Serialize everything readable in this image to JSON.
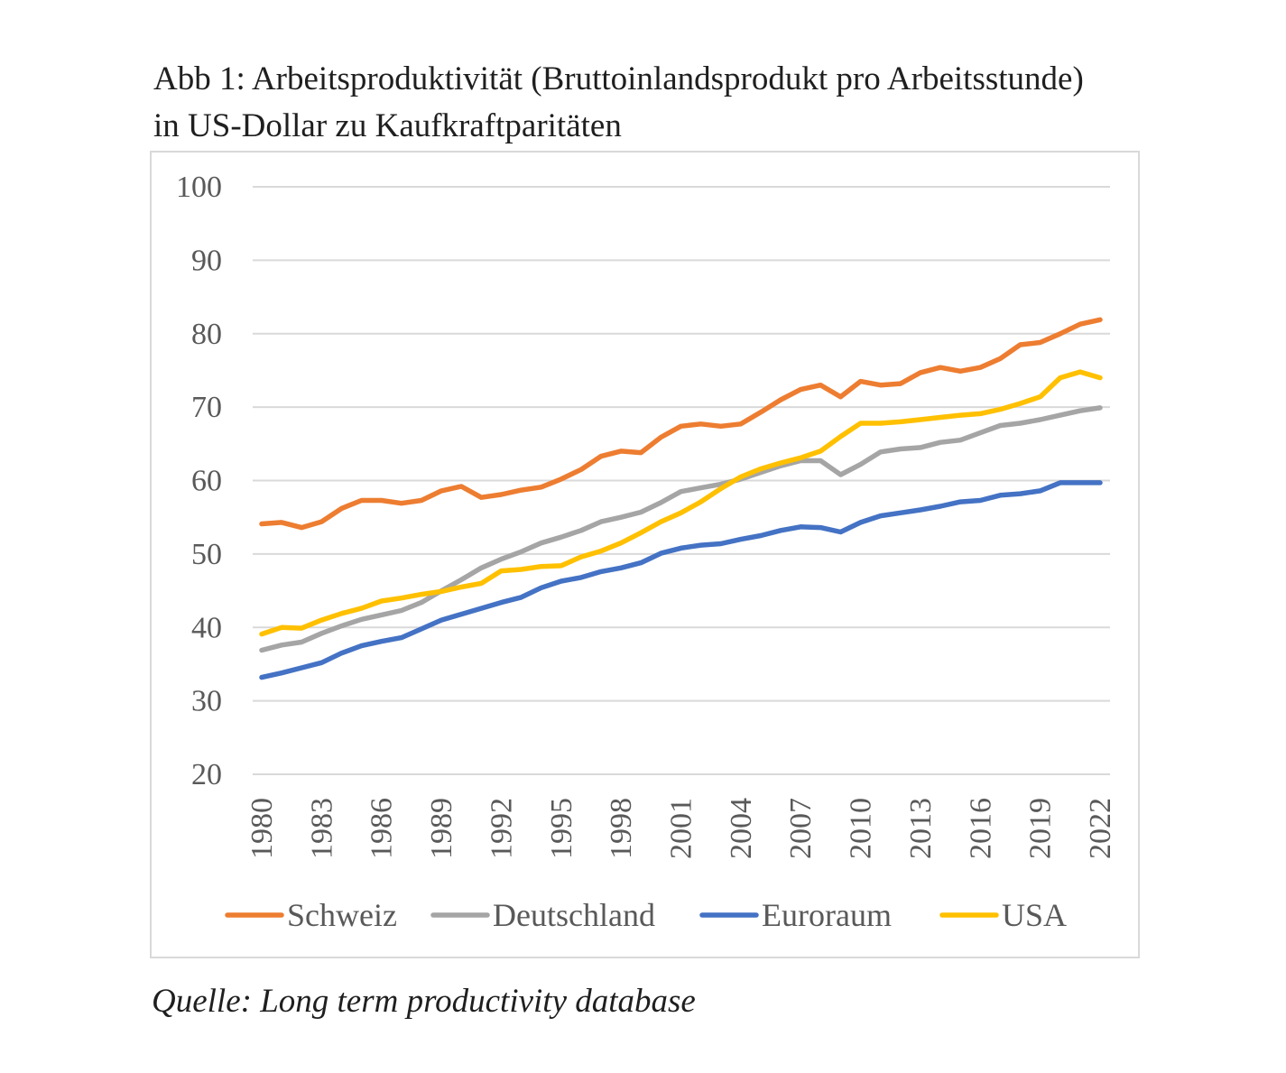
{
  "title_line1": "Abb 1: Arbeitsproduktivität (Bruttoinlandsprodukt pro Arbeitsstunde)",
  "title_line2": "in US-Dollar zu Kaufkraftparitäten",
  "source": "Quelle: Long term productivity database",
  "chart_data": {
    "type": "line",
    "ylim": [
      20,
      100
    ],
    "yticks": [
      20,
      30,
      40,
      50,
      60,
      70,
      80,
      90,
      100
    ],
    "x": [
      1980,
      1981,
      1982,
      1983,
      1984,
      1985,
      1986,
      1987,
      1988,
      1989,
      1990,
      1991,
      1992,
      1993,
      1994,
      1995,
      1996,
      1997,
      1998,
      1999,
      2000,
      2001,
      2002,
      2003,
      2004,
      2005,
      2006,
      2007,
      2008,
      2009,
      2010,
      2011,
      2012,
      2013,
      2014,
      2015,
      2016,
      2017,
      2018,
      2019,
      2020,
      2021,
      2022
    ],
    "xtick_labels": [
      "1980",
      "1983",
      "1986",
      "1989",
      "1992",
      "1995",
      "1998",
      "2001",
      "2004",
      "2007",
      "2010",
      "2013",
      "2016",
      "2019",
      "2022"
    ],
    "grid": true,
    "legend_position": "bottom",
    "series": [
      {
        "name": "Schweiz",
        "color": "#ED7D31",
        "values": [
          54.1,
          54.3,
          53.6,
          54.4,
          56.2,
          57.3,
          57.3,
          56.9,
          57.3,
          58.6,
          59.2,
          57.7,
          58.1,
          58.7,
          59.1,
          60.2,
          61.5,
          63.3,
          64.0,
          63.8,
          65.9,
          67.4,
          67.7,
          67.4,
          67.7,
          69.3,
          71.0,
          72.4,
          73.0,
          71.4,
          73.5,
          73.0,
          73.2,
          74.7,
          75.4,
          74.9,
          75.4,
          76.6,
          78.5,
          78.8,
          80.0,
          81.3,
          81.9
        ]
      },
      {
        "name": "Deutschland",
        "color": "#A5A5A5",
        "values": [
          36.9,
          37.6,
          38.0,
          39.2,
          40.2,
          41.1,
          41.7,
          42.3,
          43.4,
          45.0,
          46.5,
          48.1,
          49.3,
          50.3,
          51.5,
          52.3,
          53.2,
          54.4,
          55.0,
          55.7,
          57.0,
          58.5,
          59.0,
          59.5,
          60.2,
          61.1,
          62.0,
          62.7,
          62.7,
          60.8,
          62.2,
          63.9,
          64.3,
          64.5,
          65.2,
          65.5,
          66.5,
          67.5,
          67.8,
          68.3,
          68.9,
          69.5,
          69.9
        ]
      },
      {
        "name": "Euroraum",
        "color": "#4472C4",
        "values": [
          33.2,
          33.8,
          34.5,
          35.2,
          36.5,
          37.5,
          38.1,
          38.6,
          39.8,
          41.0,
          41.8,
          42.6,
          43.4,
          44.1,
          45.4,
          46.3,
          46.8,
          47.6,
          48.1,
          48.8,
          50.1,
          50.8,
          51.2,
          51.4,
          52.0,
          52.5,
          53.2,
          53.7,
          53.6,
          53.0,
          54.3,
          55.2,
          55.6,
          56.0,
          56.5,
          57.1,
          57.3,
          58.0,
          58.2,
          58.6,
          59.7,
          59.7,
          59.7
        ]
      },
      {
        "name": "USA",
        "color": "#FFC000",
        "values": [
          39.1,
          40.0,
          39.9,
          41.0,
          41.9,
          42.6,
          43.6,
          44.0,
          44.5,
          44.9,
          45.5,
          46.0,
          47.7,
          47.9,
          48.3,
          48.4,
          49.6,
          50.4,
          51.5,
          52.9,
          54.4,
          55.6,
          57.1,
          58.9,
          60.5,
          61.6,
          62.4,
          63.1,
          64.0,
          66.0,
          67.8,
          67.8,
          68.0,
          68.3,
          68.6,
          68.9,
          69.1,
          69.7,
          70.5,
          71.4,
          74.0,
          74.8,
          74.0
        ]
      }
    ]
  }
}
